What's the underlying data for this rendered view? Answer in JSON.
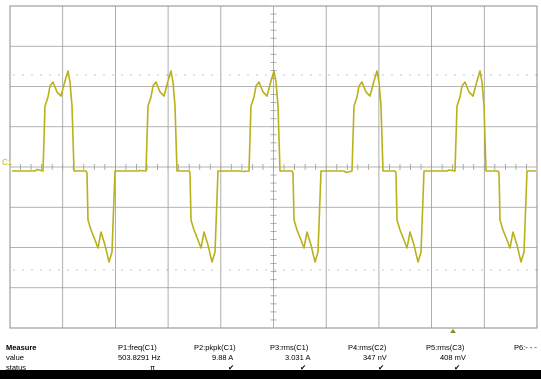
{
  "channel_label": "C1",
  "colors": {
    "trace": "#b9b11a",
    "grid": "#8a8a8a",
    "background": "#ffffff",
    "text": "#000000"
  },
  "measure": {
    "header_label": "Measure",
    "row_labels": [
      "value",
      "status"
    ],
    "columns": [
      {
        "name": "P1:freq(C1)",
        "value": "503.8291 Hz",
        "status_icon": "pi-icon",
        "status_text": "π"
      },
      {
        "name": "P2:pkpk(C1)",
        "value": "9.88 A",
        "status_icon": "check-icon",
        "status_text": "✔"
      },
      {
        "name": "P3:rms(C1)",
        "value": "3.031 A",
        "status_icon": "check-icon",
        "status_text": "✔"
      },
      {
        "name": "P4:rms(C2)",
        "value": "347 nV",
        "status_icon": "check-icon",
        "status_text": "✔"
      },
      {
        "name": "P5:rms(C3)",
        "value": "408 mV",
        "status_icon": "check-icon",
        "status_text": "✔"
      },
      {
        "name": "P6:- - -",
        "value": "",
        "status_icon": "",
        "status_text": ""
      }
    ]
  }
}
